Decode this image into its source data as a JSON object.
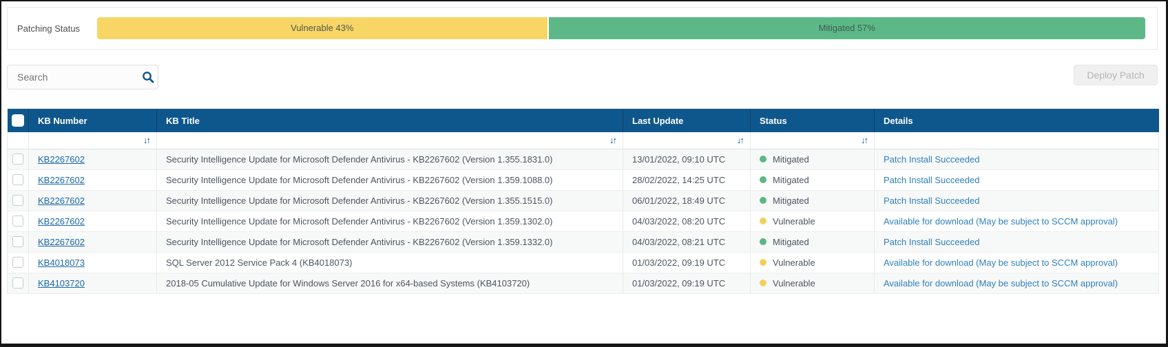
{
  "patching_status": {
    "label": "Patching Status",
    "segments": [
      {
        "label": "Vulnerable 43%",
        "percent": 43,
        "color": "#f8d666"
      },
      {
        "label": "Mitigated 57%",
        "percent": 57,
        "color": "#5cb987"
      }
    ]
  },
  "toolbar": {
    "search_placeholder": "Search",
    "deploy_button_label": "Deploy Patch",
    "deploy_button_state": "disabled"
  },
  "table": {
    "columns": [
      "KB Number",
      "KB Title",
      "Last Update",
      "Status",
      "Details"
    ],
    "sort_glyph": "↓↑",
    "rows": [
      {
        "kb": "KB2267602",
        "title": "Security Intelligence Update for Microsoft Defender Antivirus - KB2267602 (Version 1.355.1831.0)",
        "last_update": "13/01/2022, 09:10 UTC",
        "status": "Mitigated",
        "details": "Patch Install Succeeded"
      },
      {
        "kb": "KB2267602",
        "title": "Security Intelligence Update for Microsoft Defender Antivirus - KB2267602 (Version 1.359.1088.0)",
        "last_update": "28/02/2022, 14:25 UTC",
        "status": "Mitigated",
        "details": "Patch Install Succeeded"
      },
      {
        "kb": "KB2267602",
        "title": "Security Intelligence Update for Microsoft Defender Antivirus - KB2267602 (Version 1.355.1515.0)",
        "last_update": "06/01/2022, 18:49 UTC",
        "status": "Mitigated",
        "details": "Patch Install Succeeded"
      },
      {
        "kb": "KB2267602",
        "title": "Security Intelligence Update for Microsoft Defender Antivirus - KB2267602 (Version 1.359.1302.0)",
        "last_update": "04/03/2022, 08:20 UTC",
        "status": "Vulnerable",
        "details": "Available for download (May be subject to SCCM approval)"
      },
      {
        "kb": "KB2267602",
        "title": "Security Intelligence Update for Microsoft Defender Antivirus - KB2267602 (Version 1.359.1332.0)",
        "last_update": "04/03/2022, 08:21 UTC",
        "status": "Mitigated",
        "details": "Patch Install Succeeded"
      },
      {
        "kb": "KB4018073",
        "title": "SQL Server 2012 Service Pack 4 (KB4018073)",
        "last_update": "01/03/2022, 09:19 UTC",
        "status": "Vulnerable",
        "details": "Available for download (May be subject to SCCM approval)"
      },
      {
        "kb": "KB4103720",
        "title": "2018-05 Cumulative Update for Windows Server 2016 for x64-based Systems (KB4103720)",
        "last_update": "01/03/2022, 09:19 UTC",
        "status": "Vulnerable",
        "details": "Available for download (May be subject to SCCM approval)"
      }
    ]
  },
  "colors": {
    "header_blue": "#0e578c",
    "link_blue": "#1768ab",
    "details_blue": "#2e80bd",
    "status": {
      "Mitigated": "#5bb784",
      "Vulnerable": "#f0d060"
    },
    "progress_vulnerable": "#f8d666",
    "progress_mitigated": "#5cb987"
  }
}
